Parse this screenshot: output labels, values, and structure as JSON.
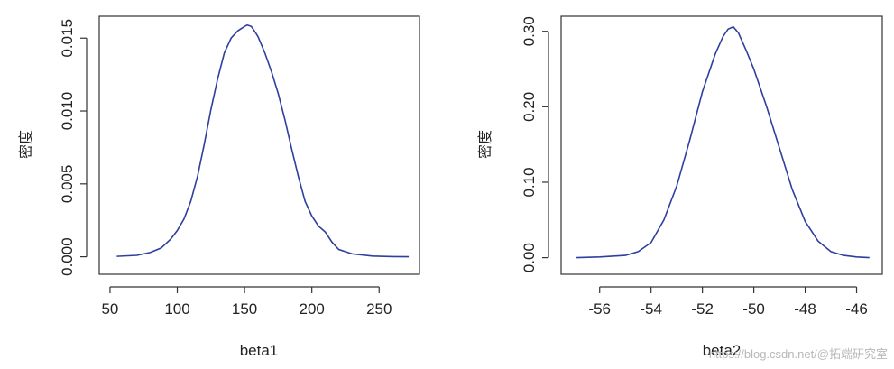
{
  "chart_data": [
    {
      "type": "line",
      "title": "",
      "xlabel": "beta1",
      "ylabel": "密度",
      "xlim": [
        42,
        280
      ],
      "ylim": [
        -0.0012,
        0.0165
      ],
      "xticks": [
        "50",
        "100",
        "150",
        "200",
        "250"
      ],
      "xtick_values": [
        50,
        100,
        150,
        200,
        250
      ],
      "yticks": [
        "0.000",
        "0.005",
        "0.010",
        "0.015"
      ],
      "ytick_values": [
        0,
        0.005,
        0.01,
        0.015
      ],
      "color": "#2f3f9e",
      "series": [
        {
          "x": [
            55,
            70,
            80,
            88,
            95,
            100,
            105,
            110,
            115,
            120,
            125,
            130,
            135,
            140,
            145,
            150,
            152,
            155,
            158,
            160,
            165,
            170,
            175,
            180,
            185,
            190,
            195,
            200,
            205,
            210,
            215,
            220,
            230,
            245,
            260,
            272
          ],
          "y": [
            3e-05,
            0.0001,
            0.0003,
            0.0006,
            0.0012,
            0.0018,
            0.0026,
            0.0038,
            0.0055,
            0.0077,
            0.0101,
            0.0122,
            0.014,
            0.015,
            0.0155,
            0.0158,
            0.0159,
            0.0158,
            0.0154,
            0.0151,
            0.014,
            0.0127,
            0.0112,
            0.0094,
            0.0074,
            0.0055,
            0.0038,
            0.0028,
            0.0021,
            0.0017,
            0.001,
            0.0005,
            0.0002,
            5e-05,
            1e-05,
            0.0
          ]
        }
      ]
    },
    {
      "type": "line",
      "title": "",
      "xlabel": "beta2",
      "ylabel": "密度",
      "xlim": [
        -57.5,
        -45
      ],
      "ylim": [
        -0.022,
        0.32
      ],
      "xticks": [
        "-56",
        "-54",
        "-52",
        "-50",
        "-48",
        "-46"
      ],
      "xtick_values": [
        -56,
        -54,
        -52,
        -50,
        -48,
        -46
      ],
      "yticks": [
        "0.00",
        "0.10",
        "0.20",
        "0.30"
      ],
      "ytick_values": [
        0,
        0.1,
        0.2,
        0.3
      ],
      "color": "#2f3f9e",
      "series": [
        {
          "x": [
            -56.9,
            -56.0,
            -55.0,
            -54.5,
            -54.0,
            -53.5,
            -53.0,
            -52.5,
            -52.0,
            -51.5,
            -51.2,
            -51.0,
            -50.8,
            -50.6,
            -50.3,
            -50.0,
            -49.5,
            -49.0,
            -48.5,
            -48.0,
            -47.5,
            -47.0,
            -46.5,
            -46.0,
            -45.5
          ],
          "y": [
            0.0,
            0.001,
            0.003,
            0.008,
            0.02,
            0.05,
            0.095,
            0.155,
            0.22,
            0.27,
            0.293,
            0.303,
            0.306,
            0.298,
            0.275,
            0.25,
            0.2,
            0.145,
            0.09,
            0.048,
            0.022,
            0.008,
            0.003,
            0.001,
            0.0
          ]
        }
      ]
    }
  ],
  "watermark": "https://blog.csdn.net/@拓端研究室"
}
